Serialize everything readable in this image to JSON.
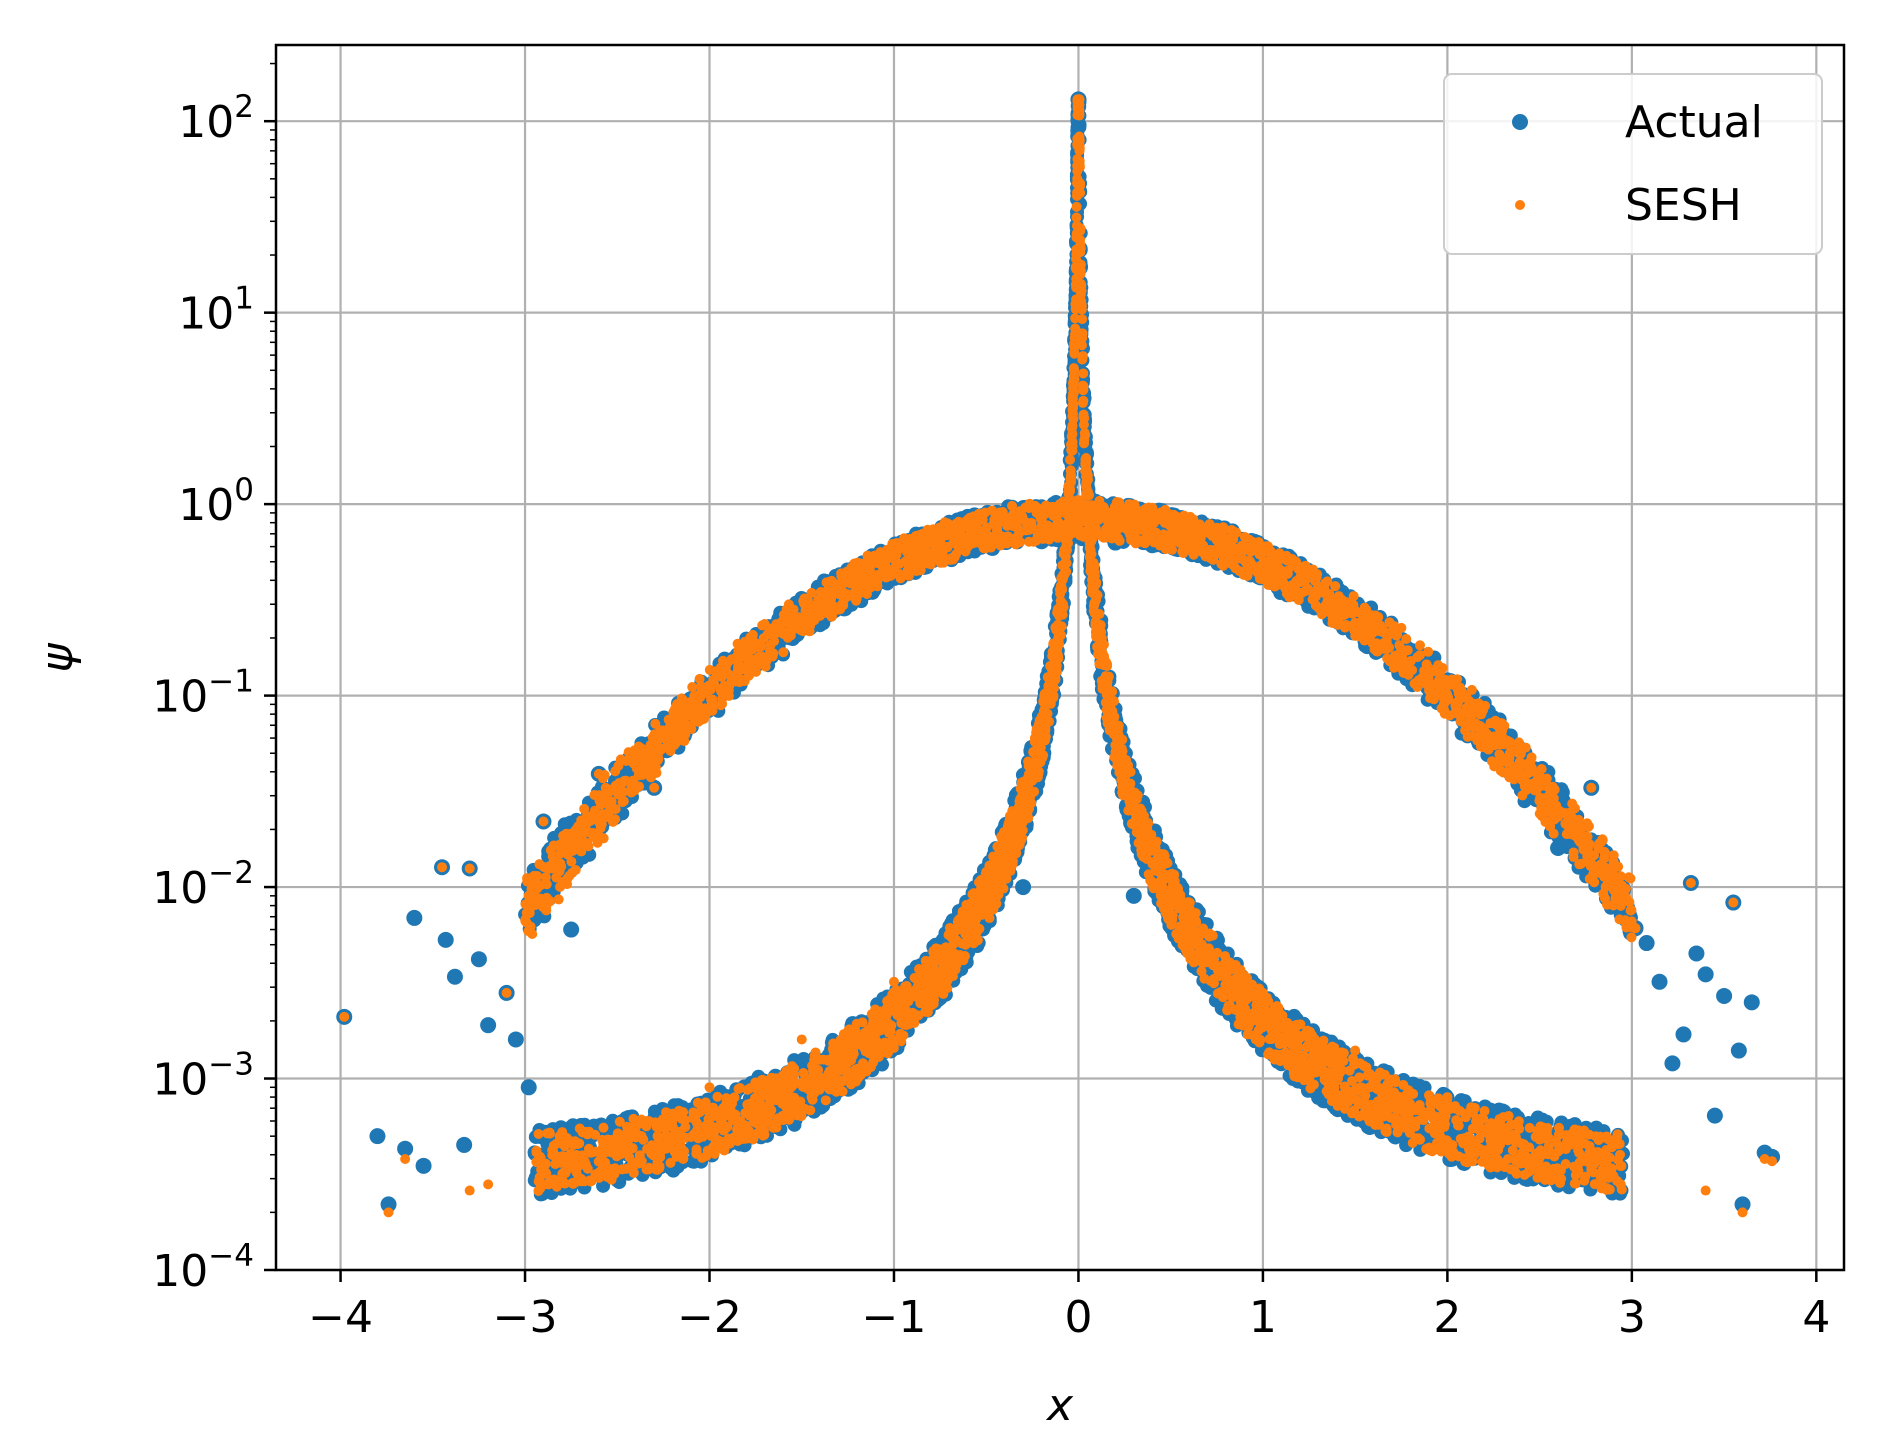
{
  "chart_data": {
    "type": "scatter",
    "xlabel": "x",
    "ylabel": "ψ",
    "xlim": [
      -4.35,
      4.15
    ],
    "ylim": [
      0.0001,
      250
    ],
    "yscale": "log",
    "grid": true,
    "legend_placement": "top-right",
    "x_ticks": [
      {
        "value": -4,
        "label": "−4"
      },
      {
        "value": -3,
        "label": "−3"
      },
      {
        "value": -2,
        "label": "−2"
      },
      {
        "value": -1,
        "label": "−1"
      },
      {
        "value": 0,
        "label": "0"
      },
      {
        "value": 1,
        "label": "1"
      },
      {
        "value": 2,
        "label": "2"
      },
      {
        "value": 3,
        "label": "3"
      },
      {
        "value": 4,
        "label": "4"
      }
    ],
    "y_ticks": [
      {
        "value": 0.0001,
        "base": "10",
        "exp": "−4"
      },
      {
        "value": 0.001,
        "base": "10",
        "exp": "−3"
      },
      {
        "value": 0.01,
        "base": "10",
        "exp": "−2"
      },
      {
        "value": 0.1,
        "base": "10",
        "exp": "−1"
      },
      {
        "value": 1,
        "base": "10",
        "exp": "0"
      },
      {
        "value": 10,
        "base": "10",
        "exp": "1"
      },
      {
        "value": 100,
        "base": "10",
        "exp": "2"
      }
    ],
    "series": [
      {
        "name": "Actual",
        "color": "#1f77b4",
        "marker": "large dot",
        "points": [
          [
            -3.98,
            0.0021
          ],
          [
            -3.8,
            0.0005
          ],
          [
            -3.74,
            0.00022
          ],
          [
            -3.65,
            0.00043
          ],
          [
            -3.6,
            0.0069
          ],
          [
            -3.55,
            0.00035
          ],
          [
            -3.45,
            0.0127
          ],
          [
            -3.43,
            0.0053
          ],
          [
            -3.38,
            0.0034
          ],
          [
            -3.33,
            0.00045
          ],
          [
            -3.3,
            0.0125
          ],
          [
            -3.25,
            0.0042
          ],
          [
            -3.2,
            0.0019
          ],
          [
            -3.1,
            0.0028
          ],
          [
            -3.05,
            0.0016
          ],
          [
            -2.98,
            0.0009
          ],
          [
            -2.9,
            0.022
          ],
          [
            -2.85,
            0.0095
          ],
          [
            -2.8,
            0.013
          ],
          [
            -2.75,
            0.006
          ],
          [
            -2.6,
            0.039
          ],
          [
            -2.55,
            0.026
          ],
          [
            -2.45,
            0.029
          ],
          [
            -2.35,
            0.054
          ],
          [
            -2.3,
            0.033
          ],
          [
            -2.2,
            0.068
          ],
          [
            -2.12,
            0.08
          ],
          [
            -2.05,
            0.098
          ],
          [
            -1.9,
            0.13
          ],
          [
            -1.7,
            0.17
          ],
          [
            -1.5,
            0.24
          ],
          [
            -1.3,
            0.33
          ],
          [
            -1.0,
            0.45
          ],
          [
            -0.8,
            0.56
          ],
          [
            -0.6,
            0.62
          ],
          [
            -0.4,
            0.66
          ],
          [
            -0.2,
            0.64
          ],
          [
            0.2,
            0.63
          ],
          [
            0.4,
            0.61
          ],
          [
            0.6,
            0.58
          ],
          [
            0.8,
            0.53
          ],
          [
            1.0,
            0.46
          ],
          [
            1.2,
            0.37
          ],
          [
            1.4,
            0.28
          ],
          [
            1.6,
            0.21
          ],
          [
            1.8,
            0.16
          ],
          [
            2.0,
            0.12
          ],
          [
            2.08,
            0.1
          ],
          [
            2.22,
            0.074
          ],
          [
            2.3,
            0.052
          ],
          [
            2.42,
            0.049
          ],
          [
            2.5,
            0.038
          ],
          [
            2.6,
            0.016
          ],
          [
            2.7,
            0.019
          ],
          [
            2.78,
            0.033
          ],
          [
            2.82,
            0.017
          ],
          [
            2.9,
            0.0094
          ],
          [
            2.95,
            0.0072
          ],
          [
            3.02,
            0.0061
          ],
          [
            3.08,
            0.0051
          ],
          [
            3.15,
            0.0032
          ],
          [
            3.22,
            0.0012
          ],
          [
            3.28,
            0.0017
          ],
          [
            3.32,
            0.0105
          ],
          [
            3.35,
            0.0045
          ],
          [
            3.4,
            0.0035
          ],
          [
            3.45,
            0.00064
          ],
          [
            3.5,
            0.0027
          ],
          [
            3.55,
            0.0083
          ],
          [
            3.58,
            0.0014
          ],
          [
            3.6,
            0.00022
          ],
          [
            3.65,
            0.0025
          ],
          [
            3.72,
            0.00041
          ],
          [
            3.76,
            0.00039
          ],
          [
            0.0,
            130
          ],
          [
            0.0,
            0.97
          ],
          [
            -0.3,
            0.01
          ],
          [
            0.3,
            0.009
          ]
        ]
      },
      {
        "name": "SESH",
        "color": "#ff7f0e",
        "marker": "small dot",
        "points": [
          [
            -3.98,
            0.0021
          ],
          [
            -3.74,
            0.0002
          ],
          [
            -3.65,
            0.00038
          ],
          [
            -3.45,
            0.0127
          ],
          [
            -3.3,
            0.0125
          ],
          [
            -3.3,
            0.00026
          ],
          [
            -3.2,
            0.00028
          ],
          [
            -3.1,
            0.0028
          ],
          [
            -2.9,
            0.022
          ],
          [
            -2.6,
            0.039
          ],
          [
            -2.3,
            0.033
          ],
          [
            -2.05,
            0.098
          ],
          [
            -1.9,
            0.13
          ],
          [
            -1.5,
            0.24
          ],
          [
            -1.0,
            0.45
          ],
          [
            -0.5,
            0.64
          ],
          [
            0.0,
            130
          ],
          [
            0.5,
            0.62
          ],
          [
            1.0,
            0.46
          ],
          [
            1.5,
            0.24
          ],
          [
            2.08,
            0.1
          ],
          [
            2.5,
            0.038
          ],
          [
            2.78,
            0.033
          ],
          [
            3.02,
            0.0061
          ],
          [
            3.32,
            0.0105
          ],
          [
            3.4,
            0.00026
          ],
          [
            3.55,
            0.0083
          ],
          [
            3.6,
            0.0002
          ],
          [
            3.72,
            0.00038
          ],
          [
            3.76,
            0.00037
          ],
          [
            -2.8,
            0.0003
          ],
          [
            -2.5,
            0.0005
          ],
          [
            -2.0,
            0.0009
          ],
          [
            -1.5,
            0.0016
          ],
          [
            -1.0,
            0.0032
          ],
          [
            -0.5,
            0.012
          ],
          [
            -0.2,
            0.06
          ],
          [
            0.2,
            0.055
          ],
          [
            0.5,
            0.011
          ],
          [
            1.0,
            0.0028
          ],
          [
            1.5,
            0.0014
          ],
          [
            2.0,
            0.0008
          ],
          [
            2.5,
            0.00048
          ],
          [
            2.9,
            0.00031
          ]
        ]
      }
    ]
  }
}
